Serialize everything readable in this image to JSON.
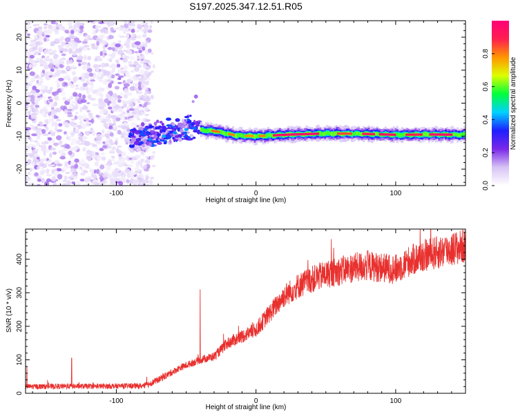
{
  "chart_data": [
    {
      "type": "heatmap",
      "title": "S197.2025.347.12.51.R05",
      "xlabel": "Height of straight line (km)",
      "ylabel": "Frequency (Hz)",
      "xlim": [
        -165,
        150
      ],
      "ylim": [
        -25,
        25
      ],
      "x_ticks": [
        -100,
        0,
        100
      ],
      "y_ticks": [
        -20,
        -10,
        0,
        10,
        20
      ],
      "grid": false,
      "colorbar": {
        "label": "Normalized spectral amplitude",
        "range": [
          0,
          1
        ],
        "ticks": [
          0.0,
          0.2,
          0.4,
          0.6,
          0.8
        ],
        "colors": [
          "#ffffff",
          "#d7c3f5",
          "#7a28e8",
          "#1e1eff",
          "#00d2ff",
          "#00ff3c",
          "#dcff00",
          "#ff9600",
          "#ff1e50",
          "#ff0078"
        ]
      },
      "regions": [
        {
          "name": "noise",
          "x_range": [
            -165,
            -80
          ],
          "freq_range": [
            -25,
            25
          ],
          "amplitude": "0.0-0.15"
        },
        {
          "name": "onset",
          "x_range": [
            -90,
            -40
          ],
          "freq_range": [
            -14,
            3
          ],
          "amplitude": "0.15-0.4"
        },
        {
          "name": "tone",
          "x_range": [
            -40,
            150
          ],
          "freq_center": -9.5,
          "freq_width": 3,
          "amplitude": "0.3-0.98"
        }
      ],
      "ridge_points": [
        {
          "x": -90,
          "f": -11
        },
        {
          "x": -75,
          "f": -10
        },
        {
          "x": -60,
          "f": -9
        },
        {
          "x": -45,
          "f": -8
        },
        {
          "x": -30,
          "f": -8.5
        },
        {
          "x": -15,
          "f": -9.8
        },
        {
          "x": 0,
          "f": -10
        },
        {
          "x": 25,
          "f": -9.5
        },
        {
          "x": 50,
          "f": -9.2
        },
        {
          "x": 75,
          "f": -9.3
        },
        {
          "x": 100,
          "f": -9.6
        },
        {
          "x": 125,
          "f": -9.5
        },
        {
          "x": 150,
          "f": -9.6
        }
      ]
    },
    {
      "type": "line",
      "xlabel": "Height of straight line (km)",
      "ylabel": "SNR (10 * v/v)",
      "xlim": [
        -165,
        150
      ],
      "ylim": [
        0,
        490
      ],
      "x_ticks": [
        -100,
        0,
        100
      ],
      "y_ticks": [
        0,
        100,
        200,
        300,
        400
      ],
      "grid": false,
      "series": [
        {
          "name": "SNR",
          "color": "#e8302e",
          "trend": [
            {
              "x": -165,
              "y": 20
            },
            {
              "x": -80,
              "y": 22
            },
            {
              "x": -70,
              "y": 40
            },
            {
              "x": -55,
              "y": 75
            },
            {
              "x": -40,
              "y": 100
            },
            {
              "x": -30,
              "y": 110
            },
            {
              "x": -20,
              "y": 150
            },
            {
              "x": -10,
              "y": 170
            },
            {
              "x": 0,
              "y": 190
            },
            {
              "x": 10,
              "y": 240
            },
            {
              "x": 20,
              "y": 290
            },
            {
              "x": 30,
              "y": 320
            },
            {
              "x": 40,
              "y": 340
            },
            {
              "x": 50,
              "y": 355
            },
            {
              "x": 60,
              "y": 365
            },
            {
              "x": 70,
              "y": 375
            },
            {
              "x": 80,
              "y": 380
            },
            {
              "x": 90,
              "y": 375
            },
            {
              "x": 100,
              "y": 370
            },
            {
              "x": 110,
              "y": 395
            },
            {
              "x": 120,
              "y": 410
            },
            {
              "x": 130,
              "y": 420
            },
            {
              "x": 140,
              "y": 430
            },
            {
              "x": 150,
              "y": 440
            }
          ],
          "spikes": [
            {
              "x": -164,
              "y": 80
            },
            {
              "x": -132,
              "y": 105
            },
            {
              "x": -40,
              "y": 310
            }
          ]
        }
      ]
    }
  ]
}
